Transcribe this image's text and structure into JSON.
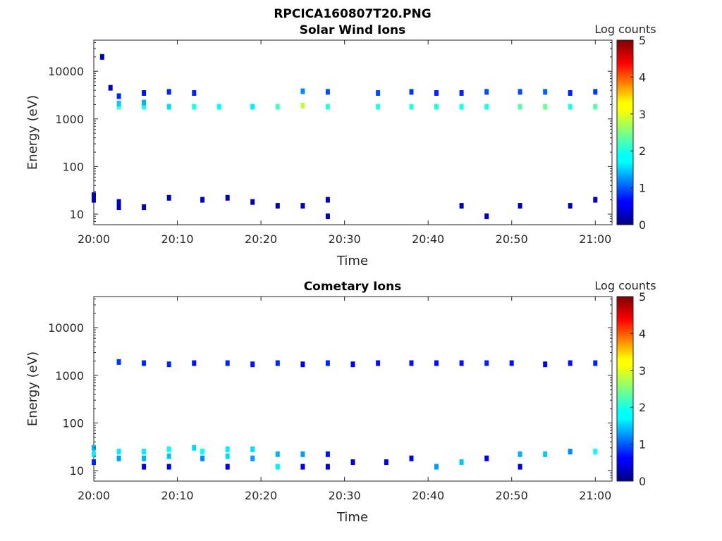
{
  "figure_title": "RPCICA160807T20.PNG",
  "chart_data": [
    {
      "type": "heatmap",
      "title": "Solar Wind Ions",
      "xlabel": "Time",
      "ylabel": "Energy (eV)",
      "y_scale": "log",
      "ylim": [
        6,
        45000
      ],
      "xlim": [
        "20:00",
        "21:02"
      ],
      "x_ticks": [
        "20:00",
        "20:10",
        "20:20",
        "20:30",
        "20:40",
        "20:50",
        "21:00"
      ],
      "y_ticks": [
        "10",
        "100",
        "1000",
        "10000"
      ],
      "colorbar": {
        "label": "Log counts",
        "range": [
          0,
          5
        ],
        "ticks": [
          "0",
          "1",
          "2",
          "3",
          "4",
          "5"
        ],
        "colormap": "jet"
      },
      "points": [
        {
          "t": "20:00",
          "e": 25,
          "v": 0.3
        },
        {
          "t": "20:00",
          "e": 20,
          "v": 0.3
        },
        {
          "t": "20:01",
          "e": 20000,
          "v": 0.3
        },
        {
          "t": "20:02",
          "e": 4500,
          "v": 0.3
        },
        {
          "t": "20:03",
          "e": 1800,
          "v": 2.2
        },
        {
          "t": "20:03",
          "e": 2100,
          "v": 1.6
        },
        {
          "t": "20:03",
          "e": 3000,
          "v": 0.8
        },
        {
          "t": "20:03",
          "e": 18,
          "v": 0.3
        },
        {
          "t": "20:03",
          "e": 14,
          "v": 0.3
        },
        {
          "t": "20:06",
          "e": 1800,
          "v": 2.0
        },
        {
          "t": "20:06",
          "e": 2200,
          "v": 1.5
        },
        {
          "t": "20:06",
          "e": 3500,
          "v": 0.7
        },
        {
          "t": "20:06",
          "e": 14,
          "v": 0.3
        },
        {
          "t": "20:09",
          "e": 1800,
          "v": 1.7
        },
        {
          "t": "20:09",
          "e": 3700,
          "v": 0.8
        },
        {
          "t": "20:09",
          "e": 22,
          "v": 0.3
        },
        {
          "t": "20:12",
          "e": 1800,
          "v": 2.0
        },
        {
          "t": "20:12",
          "e": 3500,
          "v": 0.8
        },
        {
          "t": "20:13",
          "e": 20,
          "v": 0.3
        },
        {
          "t": "20:15",
          "e": 1800,
          "v": 1.9
        },
        {
          "t": "20:16",
          "e": 22,
          "v": 0.3
        },
        {
          "t": "20:19",
          "e": 1800,
          "v": 1.8
        },
        {
          "t": "20:19",
          "e": 18,
          "v": 0.3
        },
        {
          "t": "20:22",
          "e": 1800,
          "v": 2.2
        },
        {
          "t": "20:22",
          "e": 15,
          "v": 0.3
        },
        {
          "t": "20:25",
          "e": 1900,
          "v": 2.8
        },
        {
          "t": "20:25",
          "e": 3800,
          "v": 1.3
        },
        {
          "t": "20:25",
          "e": 15,
          "v": 0.3
        },
        {
          "t": "20:28",
          "e": 1800,
          "v": 2.1
        },
        {
          "t": "20:28",
          "e": 3700,
          "v": 1.0
        },
        {
          "t": "20:28",
          "e": 20,
          "v": 0.3
        },
        {
          "t": "20:28",
          "e": 9,
          "v": 0.3
        },
        {
          "t": "20:34",
          "e": 1800,
          "v": 2.0
        },
        {
          "t": "20:34",
          "e": 3500,
          "v": 1.0
        },
        {
          "t": "20:38",
          "e": 1800,
          "v": 2.1
        },
        {
          "t": "20:38",
          "e": 3700,
          "v": 0.9
        },
        {
          "t": "20:41",
          "e": 1800,
          "v": 2.0
        },
        {
          "t": "20:41",
          "e": 3500,
          "v": 0.8
        },
        {
          "t": "20:44",
          "e": 1800,
          "v": 2.0
        },
        {
          "t": "20:44",
          "e": 3500,
          "v": 0.8
        },
        {
          "t": "20:44",
          "e": 15,
          "v": 0.3
        },
        {
          "t": "20:47",
          "e": 1800,
          "v": 2.0
        },
        {
          "t": "20:47",
          "e": 3700,
          "v": 1.0
        },
        {
          "t": "20:47",
          "e": 9,
          "v": 0.3
        },
        {
          "t": "20:51",
          "e": 1800,
          "v": 2.3
        },
        {
          "t": "20:51",
          "e": 3700,
          "v": 1.0
        },
        {
          "t": "20:51",
          "e": 15,
          "v": 0.3
        },
        {
          "t": "20:54",
          "e": 1800,
          "v": 2.4
        },
        {
          "t": "20:54",
          "e": 3700,
          "v": 1.1
        },
        {
          "t": "20:57",
          "e": 1800,
          "v": 2.0
        },
        {
          "t": "20:57",
          "e": 3500,
          "v": 0.8
        },
        {
          "t": "20:57",
          "e": 15,
          "v": 0.3
        },
        {
          "t": "21:00",
          "e": 1800,
          "v": 2.3
        },
        {
          "t": "21:00",
          "e": 3700,
          "v": 0.9
        },
        {
          "t": "21:00",
          "e": 20,
          "v": 0.3
        }
      ]
    },
    {
      "type": "heatmap",
      "title": "Cometary Ions",
      "xlabel": "Time",
      "ylabel": "Energy (eV)",
      "y_scale": "log",
      "ylim": [
        6,
        45000
      ],
      "xlim": [
        "20:00",
        "21:02"
      ],
      "x_ticks": [
        "20:00",
        "20:10",
        "20:20",
        "20:30",
        "20:40",
        "20:50",
        "21:00"
      ],
      "y_ticks": [
        "10",
        "100",
        "1000",
        "10000"
      ],
      "colorbar": {
        "label": "Log counts",
        "range": [
          0,
          5
        ],
        "ticks": [
          "0",
          "1",
          "2",
          "3",
          "4",
          "5"
        ],
        "colormap": "jet"
      },
      "points": [
        {
          "t": "20:00",
          "e": 30,
          "v": 1.5
        },
        {
          "t": "20:00",
          "e": 22,
          "v": 1.8
        },
        {
          "t": "20:00",
          "e": 15,
          "v": 0.8
        },
        {
          "t": "20:03",
          "e": 1900,
          "v": 0.9
        },
        {
          "t": "20:03",
          "e": 25,
          "v": 1.8
        },
        {
          "t": "20:03",
          "e": 18,
          "v": 1.4
        },
        {
          "t": "20:06",
          "e": 1800,
          "v": 0.8
        },
        {
          "t": "20:06",
          "e": 25,
          "v": 1.8
        },
        {
          "t": "20:06",
          "e": 18,
          "v": 1.5
        },
        {
          "t": "20:06",
          "e": 12,
          "v": 0.5
        },
        {
          "t": "20:09",
          "e": 1700,
          "v": 0.8
        },
        {
          "t": "20:09",
          "e": 28,
          "v": 1.9
        },
        {
          "t": "20:09",
          "e": 20,
          "v": 1.6
        },
        {
          "t": "20:09",
          "e": 12,
          "v": 0.6
        },
        {
          "t": "20:12",
          "e": 1800,
          "v": 0.7
        },
        {
          "t": "20:12",
          "e": 30,
          "v": 1.7
        },
        {
          "t": "20:13",
          "e": 25,
          "v": 1.9
        },
        {
          "t": "20:13",
          "e": 18,
          "v": 1.3
        },
        {
          "t": "20:16",
          "e": 1800,
          "v": 0.8
        },
        {
          "t": "20:16",
          "e": 28,
          "v": 1.8
        },
        {
          "t": "20:16",
          "e": 20,
          "v": 1.7
        },
        {
          "t": "20:16",
          "e": 12,
          "v": 0.5
        },
        {
          "t": "20:19",
          "e": 1700,
          "v": 0.7
        },
        {
          "t": "20:19",
          "e": 28,
          "v": 1.7
        },
        {
          "t": "20:19",
          "e": 18,
          "v": 1.4
        },
        {
          "t": "20:22",
          "e": 1800,
          "v": 0.8
        },
        {
          "t": "20:22",
          "e": 22,
          "v": 1.5
        },
        {
          "t": "20:22",
          "e": 12,
          "v": 1.8
        },
        {
          "t": "20:25",
          "e": 1700,
          "v": 0.6
        },
        {
          "t": "20:25",
          "e": 22,
          "v": 1.4
        },
        {
          "t": "20:25",
          "e": 12,
          "v": 0.5
        },
        {
          "t": "20:28",
          "e": 1800,
          "v": 0.8
        },
        {
          "t": "20:28",
          "e": 22,
          "v": 0.7
        },
        {
          "t": "20:28",
          "e": 12,
          "v": 0.4
        },
        {
          "t": "20:31",
          "e": 1700,
          "v": 0.6
        },
        {
          "t": "20:31",
          "e": 15,
          "v": 0.4
        },
        {
          "t": "20:34",
          "e": 1800,
          "v": 0.7
        },
        {
          "t": "20:35",
          "e": 15,
          "v": 0.5
        },
        {
          "t": "20:38",
          "e": 1800,
          "v": 0.7
        },
        {
          "t": "20:38",
          "e": 18,
          "v": 0.6
        },
        {
          "t": "20:41",
          "e": 1800,
          "v": 0.7
        },
        {
          "t": "20:41",
          "e": 12,
          "v": 1.4
        },
        {
          "t": "20:44",
          "e": 1800,
          "v": 0.7
        },
        {
          "t": "20:44",
          "e": 15,
          "v": 1.6
        },
        {
          "t": "20:47",
          "e": 1800,
          "v": 0.8
        },
        {
          "t": "20:47",
          "e": 18,
          "v": 0.6
        },
        {
          "t": "20:50",
          "e": 1800,
          "v": 0.7
        },
        {
          "t": "20:51",
          "e": 22,
          "v": 1.5
        },
        {
          "t": "20:51",
          "e": 12,
          "v": 0.5
        },
        {
          "t": "20:54",
          "e": 1700,
          "v": 0.6
        },
        {
          "t": "20:54",
          "e": 22,
          "v": 1.6
        },
        {
          "t": "20:57",
          "e": 1800,
          "v": 0.7
        },
        {
          "t": "20:57",
          "e": 25,
          "v": 1.3
        },
        {
          "t": "21:00",
          "e": 1800,
          "v": 0.8
        },
        {
          "t": "21:00",
          "e": 25,
          "v": 1.9
        }
      ]
    }
  ]
}
